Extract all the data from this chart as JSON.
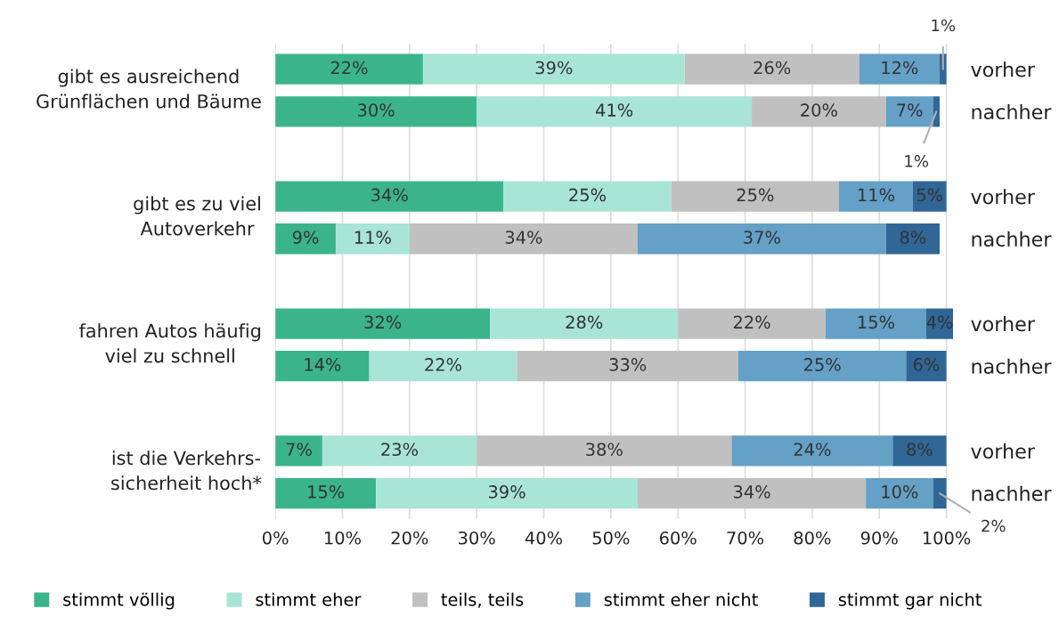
{
  "chart_data": {
    "type": "bar",
    "orientation": "horizontal",
    "stacked": true,
    "categories": [
      "vorher",
      "nachher",
      null,
      "vorher",
      "nachher",
      null,
      "vorher",
      "nachher",
      null,
      "vorher",
      "nachher"
    ],
    "series": [
      {
        "name": "stimmt völlig",
        "color": "#3bb48b",
        "values": [
          22,
          30,
          null,
          34,
          9,
          null,
          32,
          14,
          null,
          7,
          15
        ],
        "value_labels": [
          "22%",
          "30%",
          null,
          "34%",
          "9%",
          null,
          "32%",
          "14%",
          null,
          "7%",
          "15%"
        ]
      },
      {
        "name": "stimmt eher",
        "color": "#a9e5d5",
        "values": [
          39,
          41,
          null,
          25,
          11,
          null,
          28,
          22,
          null,
          23,
          39
        ],
        "value_labels": [
          "39%",
          "41%",
          null,
          "25%",
          "11%",
          null,
          "28%",
          "22%",
          null,
          "23%",
          "39%"
        ]
      },
      {
        "name": "teils, teils",
        "color": "#c0c0c0",
        "values": [
          26,
          20,
          null,
          25,
          34,
          null,
          22,
          33,
          null,
          38,
          34
        ],
        "value_labels": [
          "26%",
          "20%",
          null,
          "25%",
          "34%",
          null,
          "22%",
          "33%",
          null,
          "38%",
          "34%"
        ]
      },
      {
        "name": "stimmt eher nicht",
        "color": "#65a0c6",
        "values": [
          12,
          7,
          null,
          11,
          37,
          null,
          15,
          25,
          null,
          24,
          10
        ],
        "value_labels": [
          "12%",
          "7%",
          null,
          "11%",
          "37%",
          null,
          "15%",
          "25%",
          null,
          "24%",
          "10%"
        ]
      },
      {
        "name": "stimmt gar nicht",
        "color": "#306797",
        "values": [
          1,
          1,
          null,
          5,
          8,
          null,
          4,
          6,
          null,
          8,
          2
        ],
        "value_labels": [
          "1%",
          "1%",
          null,
          "5%",
          "8%",
          null,
          "4%",
          "6%",
          null,
          "8%",
          "2%"
        ]
      }
    ],
    "annotations": [
      "gibt es ausreichend\nGrünflächen und Bäume",
      "gibt es zu viel\nAutoverkehr",
      "fahren Autos häufig\nviel zu schnell",
      "ist die Verkehrs-\nsicherheit hoch*"
    ],
    "xlim": [
      0,
      101
    ],
    "xticks": [
      {
        "value": 0,
        "label": "0%"
      },
      {
        "value": 10,
        "label": "10%"
      },
      {
        "value": 20,
        "label": "20%"
      },
      {
        "value": 30,
        "label": "30%"
      },
      {
        "value": 40,
        "label": "40%"
      },
      {
        "value": 50,
        "label": "50%"
      },
      {
        "value": 60,
        "label": "60%"
      },
      {
        "value": 70,
        "label": "70%"
      },
      {
        "value": 80,
        "label": "80%"
      },
      {
        "value": 90,
        "label": "90%"
      },
      {
        "value": 100,
        "label": "100%"
      }
    ],
    "grid": "x",
    "legend": "bottom"
  }
}
